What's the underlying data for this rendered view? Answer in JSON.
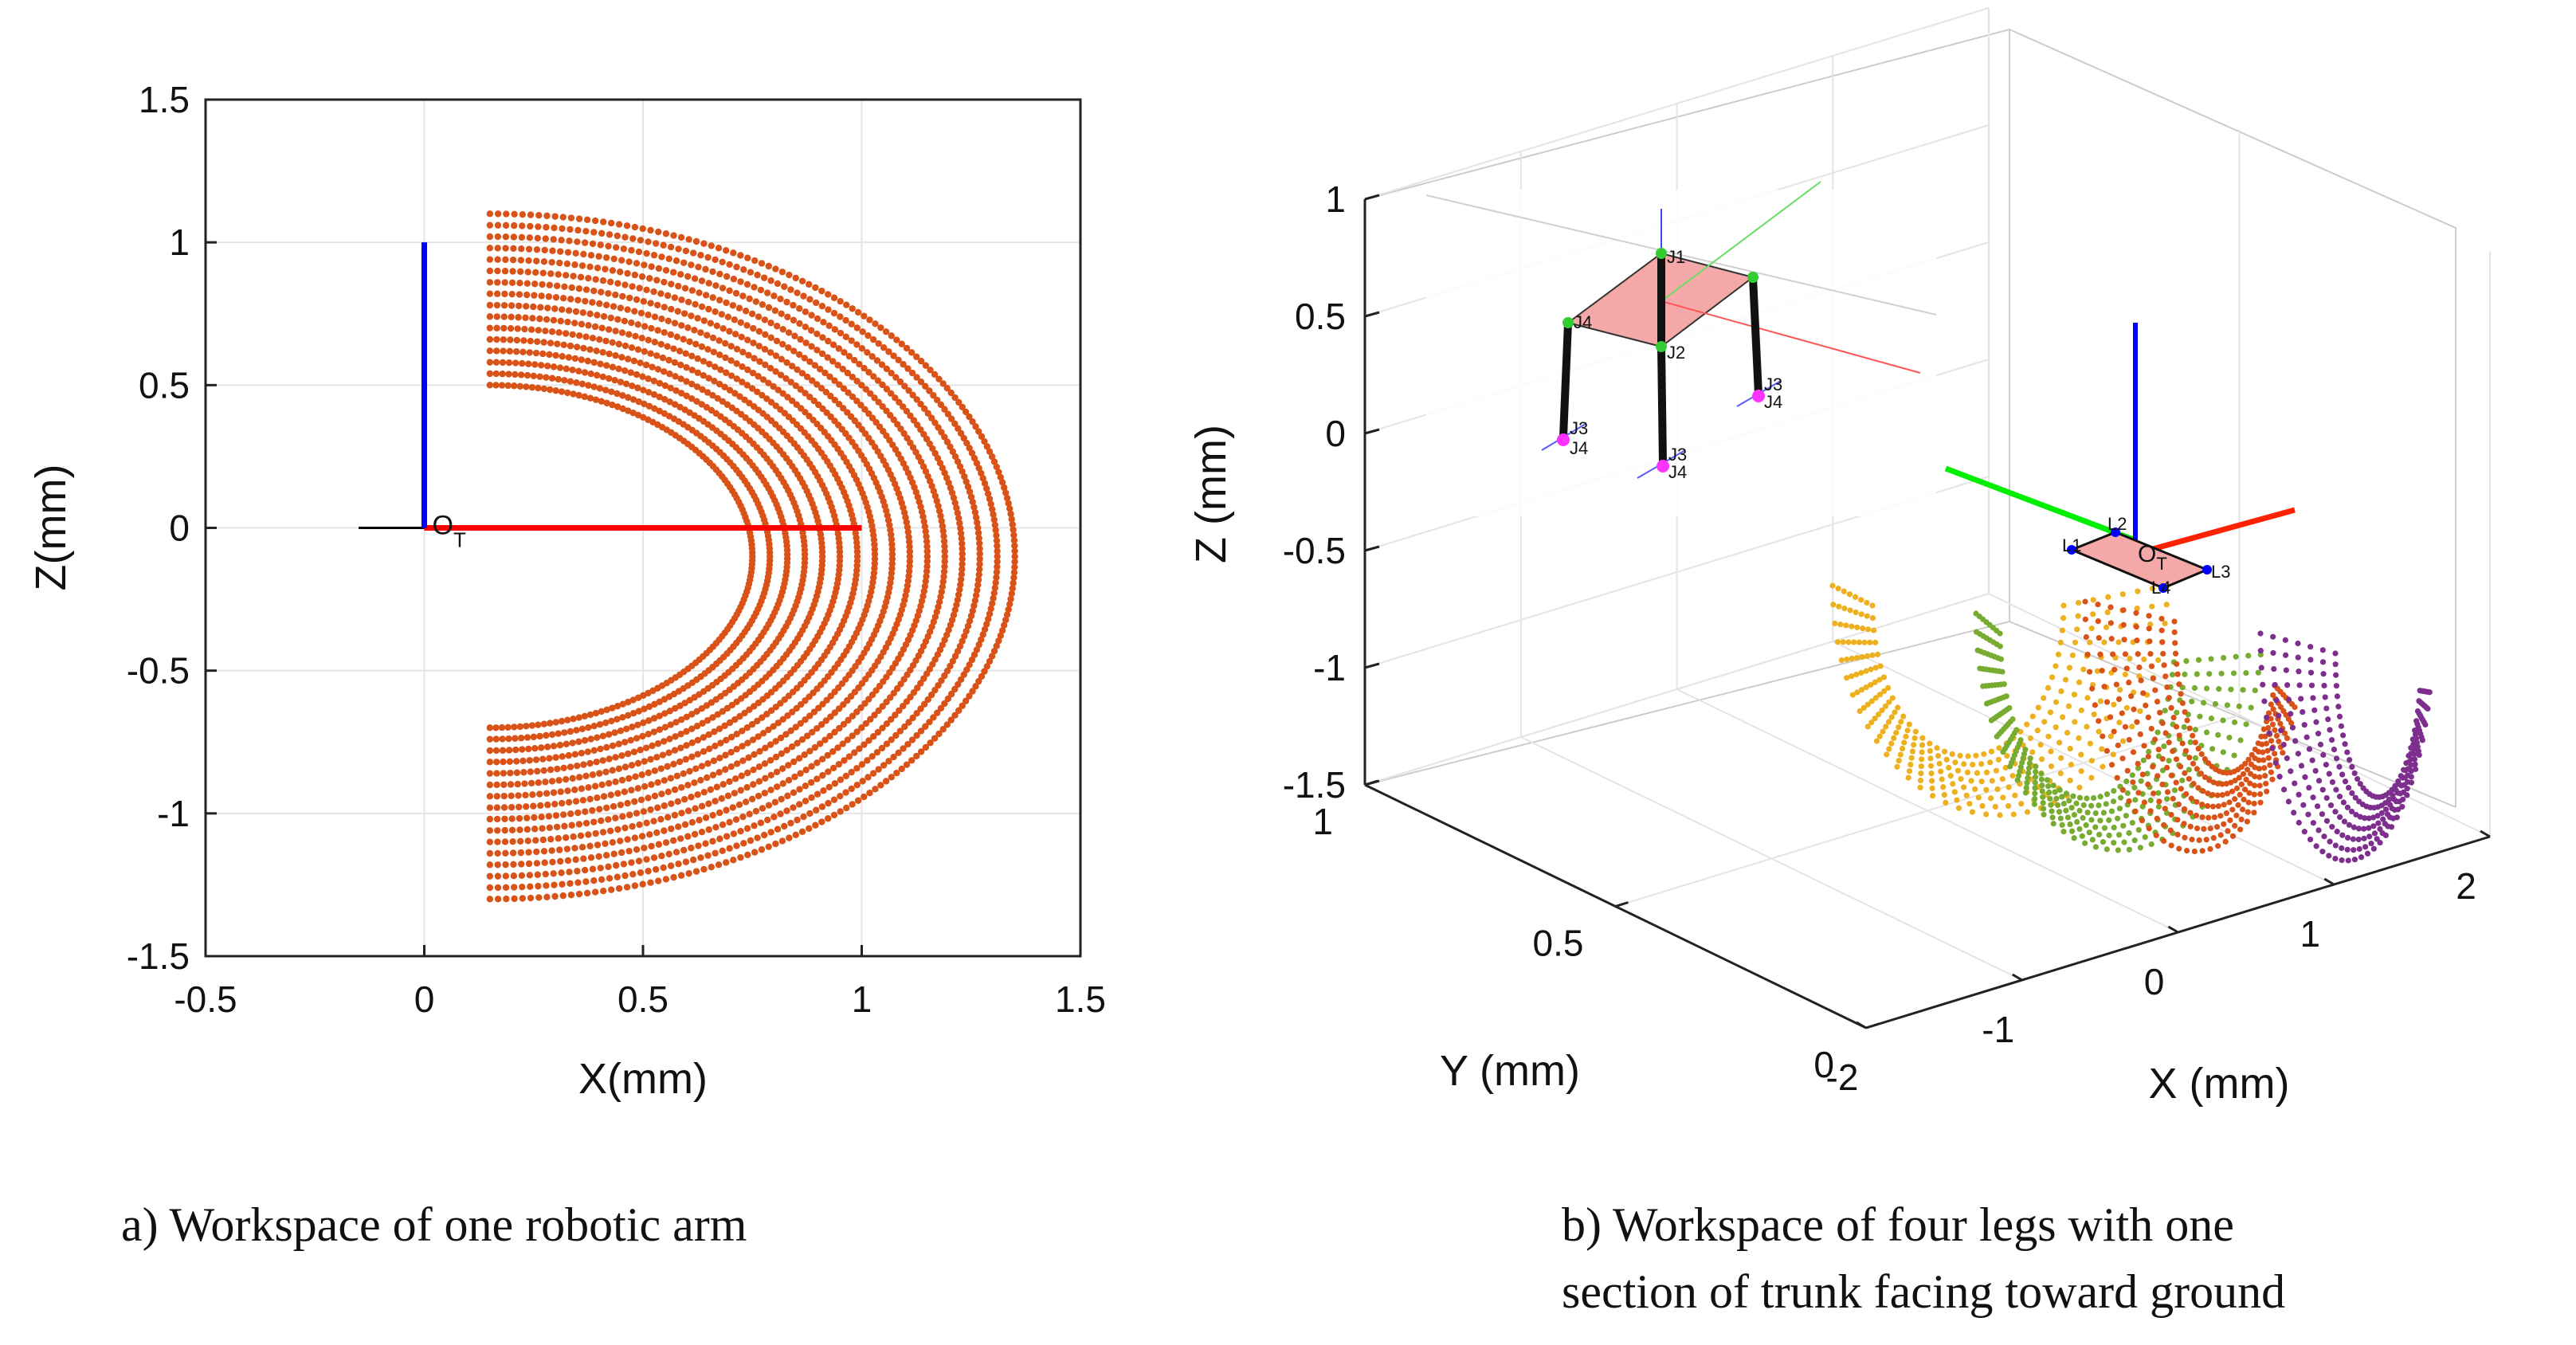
{
  "chart_data": [
    {
      "panel": "a",
      "type": "scatter",
      "title": "",
      "xlabel": "X(mm)",
      "ylabel": "Z(mm)",
      "xlim": [
        -0.5,
        1.5
      ],
      "ylim": [
        -1.5,
        1.5
      ],
      "xticks": [
        "-0.5",
        "0",
        "0.5",
        "1",
        "1.5"
      ],
      "yticks": [
        "1.5",
        "1",
        "0.5",
        "0",
        "-0.5",
        "-1",
        "-1.5"
      ],
      "grid": true,
      "point_color": "#d95319",
      "workspace": {
        "center": [
          0.15,
          -0.1
        ],
        "inner_radius": 0.6,
        "outer_radius": 1.2,
        "arc_count": 16,
        "theta_range_deg": [
          -90,
          90
        ]
      },
      "frame": {
        "origin_label": "O",
        "origin_subscript": "T",
        "x_axis_end": [
          1.0,
          0.0
        ],
        "z_axis_end": [
          0.0,
          1.0
        ],
        "black_axis_start": [
          -0.15,
          0.0
        ],
        "x_color": "#ff0000",
        "z_color": "#0000ff",
        "black_color": "#000000"
      },
      "caption": "a) Workspace of one robotic arm"
    },
    {
      "panel": "b",
      "type": "scatter3d",
      "xlabel": "X (mm)",
      "ylabel": "Y (mm)",
      "zlabel": "Z (mm)",
      "xlim": [
        -2,
        2
      ],
      "ylim": [
        0,
        1
      ],
      "zlim": [
        -1.5,
        1
      ],
      "xticks": [
        "-2",
        "-1",
        "0",
        "1",
        "2"
      ],
      "yticks": [
        "1",
        "0.5",
        "0"
      ],
      "zticks": [
        "1",
        "0.5",
        "0",
        "-0.5",
        "-1",
        "-1.5"
      ],
      "grid": true,
      "series": [
        {
          "name": "leg-yellow",
          "color": "#edb120"
        },
        {
          "name": "leg-green",
          "color": "#77ac30"
        },
        {
          "name": "leg-orange",
          "color": "#d95319"
        },
        {
          "name": "leg-purple",
          "color": "#7e2f8e"
        }
      ],
      "robot_labels": [
        "J1",
        "J2",
        "J3",
        "J4"
      ],
      "trunk_labels": [
        "L1",
        "L2",
        "L3",
        "L4"
      ],
      "origin_label": "O",
      "origin_subscript": "T",
      "caption_line1": "b) Workspace of four legs with one",
      "caption_line2": "section of trunk facing toward ground"
    }
  ]
}
